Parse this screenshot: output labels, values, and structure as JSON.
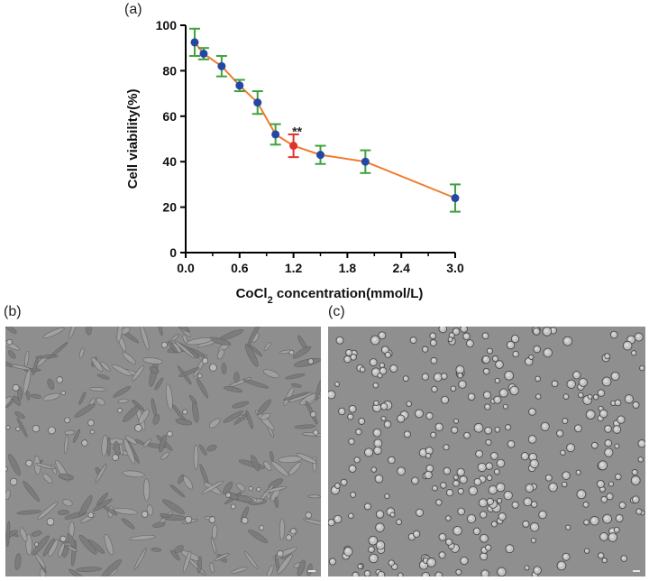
{
  "panels": {
    "a": "(a)",
    "b": "(b)",
    "c": "(c)"
  },
  "chart_data": {
    "type": "line",
    "xlabel_main": "CoCl",
    "xlabel_sub": "2",
    "xlabel_tail": " concentration(mmol/L)",
    "ylabel": "Cell viability(%)",
    "xlim": [
      0,
      3.0
    ],
    "ylim": [
      0,
      100
    ],
    "xticks": [
      0.0,
      0.6,
      1.2,
      1.8,
      2.4,
      3.0
    ],
    "xtick_labels": [
      "0.0",
      "0.6",
      "1.2",
      "1.8",
      "2.4",
      "3.0"
    ],
    "yticks": [
      0,
      20,
      40,
      60,
      80,
      100
    ],
    "ytick_labels": [
      "0",
      "20",
      "40",
      "60",
      "80",
      "100"
    ],
    "grid": false,
    "series": [
      {
        "x": [
          0.1,
          0.2,
          0.4,
          0.6,
          0.8,
          1.0,
          1.2,
          1.5,
          2.0,
          3.0
        ],
        "y": [
          92.5,
          87.5,
          82,
          73.5,
          66,
          52,
          47,
          43,
          40,
          24
        ],
        "err": [
          6,
          2.5,
          4.5,
          2.5,
          5,
          4.5,
          5,
          4,
          5,
          6
        ]
      }
    ],
    "highlight_index": 6,
    "annotation": {
      "text": "**",
      "x": 1.2,
      "y": 53
    },
    "colors": {
      "line": "#f07c2c",
      "marker": "#2447a6",
      "error": "#3ea23c",
      "highlight": "#e0322a",
      "axis": "#000000"
    }
  }
}
